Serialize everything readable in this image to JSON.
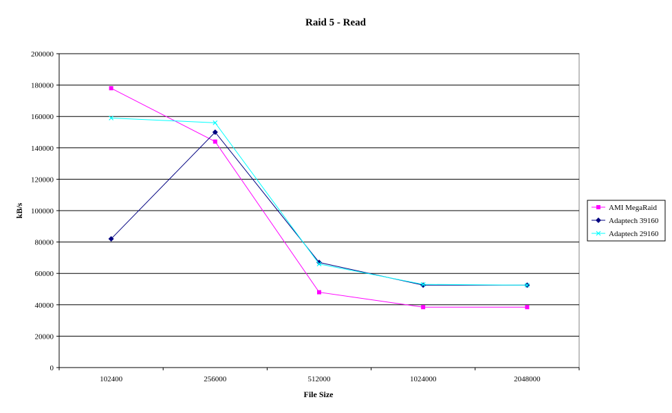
{
  "chart_data": {
    "type": "line",
    "title": "Raid 5 - Read",
    "xlabel": "File Size",
    "ylabel": "kB/s",
    "categories": [
      "102400",
      "256000",
      "512000",
      "1024000",
      "2048000"
    ],
    "ylim": [
      0,
      200000
    ],
    "ytick_step": 20000,
    "y_ticks": [
      "0",
      "20000",
      "40000",
      "60000",
      "80000",
      "100000",
      "120000",
      "140000",
      "160000",
      "180000",
      "200000"
    ],
    "grid": true,
    "legend_position": "right",
    "series": [
      {
        "name": "AMI MegaRaid",
        "values": [
          178000,
          144000,
          48000,
          38500,
          38500
        ],
        "color": "#ff00ff",
        "marker": "square"
      },
      {
        "name": "Adaptech 39160",
        "values": [
          82000,
          150000,
          67000,
          52500,
          52500
        ],
        "color": "#000080",
        "marker": "diamond"
      },
      {
        "name": "Adaptech 29160",
        "values": [
          159000,
          156000,
          66000,
          53000,
          52500
        ],
        "color": "#00ffff",
        "marker": "x"
      }
    ]
  }
}
